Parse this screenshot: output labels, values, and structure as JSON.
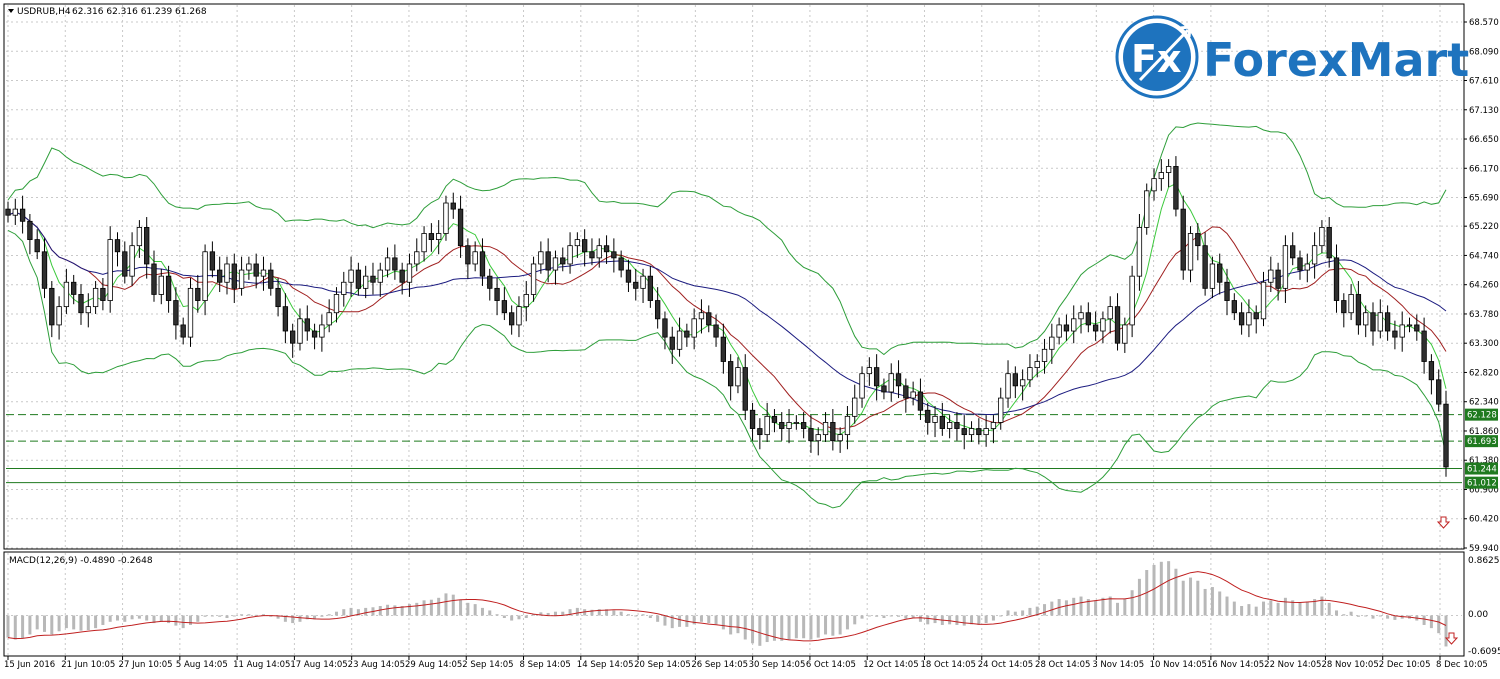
{
  "header": {
    "symbol": "USDRUB,H4",
    "ohlc": "62.316 62.316 61.239 61.268"
  },
  "logo": {
    "mark": "Fx",
    "name": "ForexMart",
    "brand_color": "#1e73be"
  },
  "macd": {
    "label": "MACD(12,26,9) -0.4890 -0.2648",
    "scale_labels": [
      "0.8625",
      "0.00",
      "-0.6095"
    ]
  },
  "colors": {
    "grid": "#c9c9c9",
    "candle_up": "#ffffff",
    "candle_down": "#2f2f2f",
    "bollinger": "#2e9e3a",
    "ma_fast": "#3cc93c",
    "ma_mid": "#a02020",
    "ma_slow": "#1c1c80",
    "level_line": "#1f7a1f",
    "macd_hist": "#b8b8b8",
    "macd_signal": "#c02020",
    "arrow": "#c02020"
  },
  "chart_data": {
    "type": "candlestick",
    "symbol": "USDRUB",
    "timeframe": "H4",
    "price_axis": {
      "min": 59.94,
      "max": 68.57,
      "ticks": [
        68.57,
        68.09,
        67.61,
        67.13,
        66.65,
        66.17,
        65.69,
        65.22,
        64.74,
        64.26,
        63.78,
        63.3,
        62.82,
        62.34,
        61.86,
        61.38,
        60.9,
        60.42,
        59.94
      ],
      "tick_labels": [
        "68.570",
        "68.090",
        "67.610",
        "67.130",
        "66.650",
        "66.170",
        "65.690",
        "65.220",
        "64.740",
        "64.260",
        "63.780",
        "63.300",
        "62.820",
        "62.340",
        "61.860",
        "61.380",
        "60.900",
        "60.420",
        "59.940"
      ]
    },
    "time_labels": [
      "15 Jun 2016",
      "21 Jun 10:05",
      "27 Jun 10:05",
      "5 Aug 14:05",
      "11 Aug 14:05",
      "17 Aug 14:05",
      "23 Aug 14:05",
      "29 Aug 14:05",
      "2 Sep 14:05",
      "8 Sep 14:05",
      "14 Sep 14:05",
      "20 Sep 14:05",
      "26 Sep 14:05",
      "30 Sep 14:05",
      "6 Oct 14:05",
      "12 Oct 14:05",
      "18 Oct 14:05",
      "24 Oct 14:05",
      "28 Oct 14:05",
      "3 Nov 14:05",
      "10 Nov 14:05",
      "16 Nov 14:05",
      "22 Nov 14:05",
      "28 Nov 10:05",
      "2 Dec 10:05",
      "8 Dec 10:05"
    ],
    "horizontal_levels": [
      {
        "label": "62.128",
        "value": 62.128,
        "style": "dashed"
      },
      {
        "label": "61.693",
        "value": 61.693,
        "style": "dashed"
      },
      {
        "label": "61.244",
        "value": 61.244,
        "style": "solid-marker"
      },
      {
        "label": "61.012",
        "value": 61.012,
        "style": "solid"
      }
    ],
    "close_series": [
      65.4,
      65.5,
      65.3,
      65.0,
      64.8,
      64.2,
      63.6,
      63.9,
      64.3,
      64.1,
      63.8,
      63.9,
      64.2,
      64.0,
      65.0,
      64.8,
      64.4,
      64.9,
      65.2,
      64.6,
      64.1,
      64.4,
      64.0,
      63.6,
      63.4,
      64.2,
      64.0,
      64.8,
      64.5,
      64.3,
      64.6,
      64.2,
      64.5,
      64.6,
      64.4,
      64.5,
      64.2,
      63.9,
      63.5,
      63.3,
      63.7,
      63.5,
      63.4,
      63.6,
      63.8,
      64.1,
      64.3,
      64.5,
      64.2,
      64.4,
      64.3,
      64.5,
      64.7,
      64.5,
      64.3,
      64.6,
      64.8,
      65.1,
      65.0,
      65.1,
      65.6,
      65.5,
      64.9,
      64.6,
      64.8,
      64.4,
      64.2,
      64.0,
      63.8,
      63.6,
      63.9,
      64.1,
      64.6,
      64.8,
      64.5,
      64.7,
      64.6,
      64.9,
      65.0,
      64.8,
      64.7,
      64.9,
      64.8,
      64.7,
      64.5,
      64.3,
      64.2,
      64.4,
      64.0,
      63.7,
      63.4,
      63.2,
      63.5,
      63.4,
      63.7,
      63.8,
      63.6,
      63.4,
      63.0,
      62.6,
      62.9,
      62.2,
      61.9,
      61.8,
      62.1,
      62.0,
      61.9,
      62.0,
      62.0,
      61.9,
      61.7,
      61.8,
      62.0,
      61.7,
      61.8,
      62.1,
      62.4,
      62.8,
      62.9,
      62.6,
      62.5,
      62.8,
      62.6,
      62.4,
      62.5,
      62.2,
      62.0,
      62.1,
      61.9,
      62.0,
      61.9,
      61.8,
      61.9,
      61.8,
      61.9,
      62.0,
      62.4,
      62.8,
      62.6,
      62.7,
      62.9,
      63.0,
      63.2,
      63.4,
      63.6,
      63.5,
      63.7,
      63.8,
      63.6,
      63.5,
      63.7,
      63.9,
      63.3,
      63.6,
      64.4,
      65.2,
      65.8,
      66.0,
      66.1,
      66.2,
      65.5,
      64.5,
      65.1,
      64.9,
      64.2,
      64.6,
      64.3,
      64.0,
      63.8,
      63.6,
      63.8,
      63.7,
      64.3,
      64.5,
      64.2,
      64.9,
      64.7,
      64.5,
      64.6,
      64.9,
      65.2,
      64.7,
      64.0,
      63.8,
      64.1,
      63.6,
      63.8,
      63.5,
      63.8,
      63.5,
      63.4,
      63.6,
      63.6,
      63.5,
      63.0,
      62.7,
      62.3,
      61.27
    ],
    "macd_axis": {
      "min": -0.6095,
      "max": 0.8625
    },
    "macd_hist": [
      -0.35,
      -0.38,
      -0.36,
      -0.3,
      -0.22,
      -0.26,
      -0.3,
      -0.25,
      -0.2,
      -0.22,
      -0.24,
      -0.23,
      -0.2,
      -0.15,
      -0.1,
      -0.08,
      -0.1,
      -0.06,
      -0.05,
      -0.08,
      -0.12,
      -0.1,
      -0.12,
      -0.16,
      -0.2,
      -0.15,
      -0.1,
      -0.02,
      0.0,
      -0.02,
      -0.04,
      0.0,
      0.02,
      0.02,
      0.01,
      0.02,
      -0.02,
      -0.05,
      -0.1,
      -0.12,
      -0.1,
      -0.06,
      -0.06,
      -0.02,
      0.02,
      0.06,
      0.1,
      0.12,
      0.1,
      0.12,
      0.13,
      0.15,
      0.17,
      0.16,
      0.15,
      0.18,
      0.2,
      0.24,
      0.25,
      0.28,
      0.35,
      0.33,
      0.25,
      0.2,
      0.18,
      0.12,
      0.08,
      0.02,
      -0.04,
      -0.08,
      -0.06,
      -0.04,
      0.02,
      0.05,
      0.04,
      0.06,
      0.06,
      0.1,
      0.12,
      0.1,
      0.09,
      0.1,
      0.1,
      0.08,
      0.06,
      0.02,
      0.0,
      0.02,
      -0.04,
      -0.1,
      -0.16,
      -0.2,
      -0.18,
      -0.18,
      -0.14,
      -0.1,
      -0.12,
      -0.14,
      -0.22,
      -0.3,
      -0.28,
      -0.38,
      -0.44,
      -0.48,
      -0.42,
      -0.4,
      -0.4,
      -0.38,
      -0.36,
      -0.36,
      -0.38,
      -0.35,
      -0.3,
      -0.32,
      -0.3,
      -0.22,
      -0.14,
      -0.05,
      0.0,
      -0.02,
      -0.04,
      0.0,
      -0.02,
      -0.05,
      -0.04,
      -0.1,
      -0.14,
      -0.12,
      -0.15,
      -0.14,
      -0.15,
      -0.16,
      -0.14,
      -0.15,
      -0.12,
      -0.08,
      0.0,
      0.08,
      0.06,
      0.08,
      0.12,
      0.14,
      0.18,
      0.22,
      0.26,
      0.24,
      0.28,
      0.3,
      0.26,
      0.24,
      0.28,
      0.3,
      0.2,
      0.26,
      0.4,
      0.58,
      0.72,
      0.8,
      0.85,
      0.86,
      0.74,
      0.55,
      0.6,
      0.55,
      0.42,
      0.45,
      0.38,
      0.3,
      0.22,
      0.15,
      0.18,
      0.14,
      0.22,
      0.24,
      0.2,
      0.28,
      0.24,
      0.2,
      0.22,
      0.26,
      0.3,
      0.2,
      0.08,
      0.02,
      0.06,
      -0.02,
      0.0,
      -0.05,
      0.0,
      -0.05,
      -0.07,
      -0.05,
      -0.05,
      -0.08,
      -0.15,
      -0.2,
      -0.28,
      -0.49
    ]
  }
}
